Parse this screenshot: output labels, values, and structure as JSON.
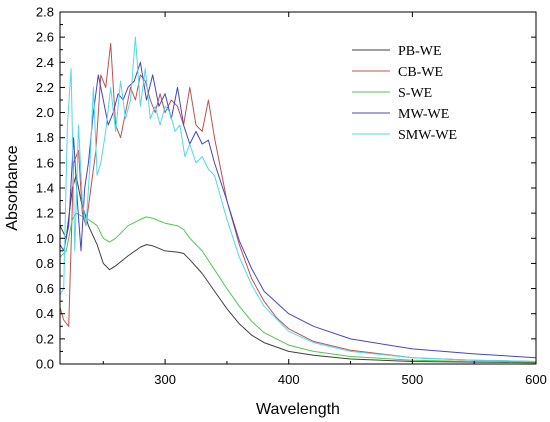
{
  "chart_data": {
    "type": "line",
    "title": "",
    "xlabel": "Wavelength",
    "ylabel": "Absorbance",
    "xlim": [
      215,
      600
    ],
    "ylim": [
      0,
      2.8
    ],
    "xticks": [
      300,
      400,
      500,
      600
    ],
    "yticks": [
      0.0,
      0.2,
      0.4,
      0.6,
      0.8,
      1.0,
      1.2,
      1.4,
      1.6,
      1.8,
      2.0,
      2.2,
      2.4,
      2.6,
      2.8
    ],
    "xtick_labels": [
      "300",
      "400",
      "500",
      "600"
    ],
    "ytick_labels": [
      "0.0",
      "0.2",
      "0.4",
      "0.6",
      "0.8",
      "1.0",
      "1.2",
      "1.4",
      "1.6",
      "1.8",
      "2.0",
      "2.2",
      "2.4",
      "2.6",
      "2.8"
    ],
    "grid": false,
    "legend_position": "top-right",
    "series": [
      {
        "name": "PB-WE",
        "color": "#404040",
        "x": [
          215,
          220,
          225,
          228,
          232,
          238,
          245,
          250,
          255,
          260,
          270,
          280,
          285,
          290,
          300,
          310,
          315,
          320,
          330,
          340,
          350,
          360,
          370,
          380,
          400,
          420,
          450,
          500,
          550,
          600
        ],
        "y": [
          1.1,
          1.0,
          1.4,
          1.5,
          1.3,
          1.1,
          0.95,
          0.8,
          0.75,
          0.78,
          0.86,
          0.93,
          0.95,
          0.94,
          0.9,
          0.89,
          0.88,
          0.83,
          0.72,
          0.58,
          0.44,
          0.32,
          0.23,
          0.17,
          0.1,
          0.07,
          0.04,
          0.02,
          0.015,
          0.01
        ]
      },
      {
        "name": "CB-WE",
        "color": "#c0504d",
        "x": [
          215,
          218,
          222,
          226,
          230,
          233,
          236,
          240,
          244,
          248,
          252,
          256,
          260,
          264,
          268,
          272,
          276,
          280,
          284,
          288,
          292,
          296,
          300,
          305,
          310,
          315,
          320,
          325,
          330,
          335,
          340,
          345,
          350,
          360,
          370,
          380,
          390,
          400,
          420,
          450,
          500,
          550,
          600
        ],
        "y": [
          0.45,
          0.35,
          0.3,
          1.6,
          1.7,
          1.2,
          1.1,
          1.4,
          1.7,
          2.3,
          2.2,
          2.55,
          1.9,
          1.8,
          2.0,
          2.2,
          2.1,
          2.3,
          2.25,
          2.1,
          2.0,
          2.15,
          2.0,
          2.1,
          2.05,
          1.9,
          2.2,
          1.9,
          1.85,
          2.1,
          1.8,
          1.55,
          1.3,
          0.95,
          0.68,
          0.5,
          0.37,
          0.28,
          0.18,
          0.11,
          0.05,
          0.03,
          0.02
        ]
      },
      {
        "name": "S-WE",
        "color": "#4ec94e",
        "x": [
          215,
          220,
          225,
          228,
          232,
          238,
          245,
          250,
          255,
          260,
          270,
          280,
          285,
          290,
          300,
          310,
          315,
          320,
          330,
          340,
          350,
          360,
          370,
          380,
          400,
          420,
          450,
          500,
          550,
          600
        ],
        "y": [
          0.85,
          0.9,
          1.15,
          1.2,
          1.18,
          1.15,
          1.1,
          1.0,
          0.97,
          1.0,
          1.1,
          1.15,
          1.17,
          1.16,
          1.12,
          1.1,
          1.07,
          1.0,
          0.9,
          0.75,
          0.6,
          0.46,
          0.34,
          0.25,
          0.15,
          0.1,
          0.06,
          0.03,
          0.02,
          0.015
        ]
      },
      {
        "name": "MW-WE",
        "color": "#4444cc",
        "x": [
          215,
          218,
          222,
          226,
          229,
          232,
          235,
          238,
          242,
          246,
          250,
          254,
          258,
          262,
          266,
          270,
          275,
          280,
          285,
          290,
          295,
          300,
          305,
          310,
          315,
          320,
          325,
          330,
          335,
          340,
          350,
          360,
          370,
          380,
          400,
          420,
          450,
          500,
          550,
          600
        ],
        "y": [
          0.95,
          0.9,
          1.1,
          1.8,
          1.3,
          0.9,
          1.4,
          1.6,
          2.0,
          2.3,
          2.1,
          1.9,
          2.0,
          2.15,
          2.1,
          2.2,
          2.25,
          2.4,
          2.1,
          2.3,
          2.05,
          2.15,
          1.95,
          2.2,
          1.9,
          1.75,
          1.85,
          1.75,
          1.78,
          1.6,
          1.3,
          0.98,
          0.76,
          0.58,
          0.4,
          0.3,
          0.2,
          0.12,
          0.08,
          0.05
        ]
      },
      {
        "name": "SMW-WE",
        "color": "#50d8ee",
        "x": [
          215,
          218,
          221,
          224,
          227,
          230,
          233,
          236,
          239,
          242,
          245,
          248,
          252,
          256,
          260,
          264,
          268,
          272,
          276,
          280,
          284,
          288,
          292,
          296,
          300,
          304,
          308,
          312,
          316,
          320,
          325,
          330,
          335,
          340,
          350,
          360,
          370,
          380,
          400,
          420,
          450,
          500,
          550,
          600
        ],
        "y": [
          0.55,
          0.6,
          1.9,
          2.35,
          0.9,
          1.9,
          1.3,
          1.1,
          1.55,
          2.2,
          1.5,
          1.6,
          1.85,
          2.2,
          1.85,
          2.25,
          1.95,
          2.1,
          2.6,
          2.05,
          2.35,
          1.95,
          2.05,
          1.9,
          2.05,
          2.0,
          1.85,
          1.9,
          1.65,
          1.75,
          1.6,
          1.65,
          1.55,
          1.5,
          1.15,
          0.85,
          0.63,
          0.46,
          0.26,
          0.17,
          0.1,
          0.05,
          0.03,
          0.02
        ]
      }
    ]
  }
}
